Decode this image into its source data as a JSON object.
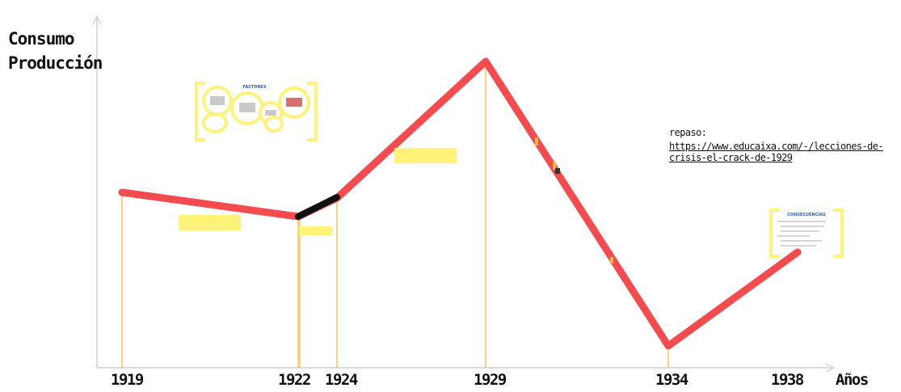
{
  "axes": {
    "y_label_line1": "Consumo",
    "y_label_line2": "Producción",
    "x_label": "Años"
  },
  "years": [
    "1919",
    "1922",
    "1924",
    "1929",
    "1934",
    "1938"
  ],
  "segments_color": {
    "line": "#f44b4f",
    "highlight": "#111111",
    "guides": "#f5b942",
    "notes": "#fff27a"
  },
  "factores": {
    "title": "FACTORES"
  },
  "consecuencias": {
    "title": "CONSECUENCIAS"
  },
  "repaso": {
    "label": "repaso:",
    "url": "https://www.educaixa.com/-/lecciones-de-crisis-el-crack-de-1929"
  }
}
